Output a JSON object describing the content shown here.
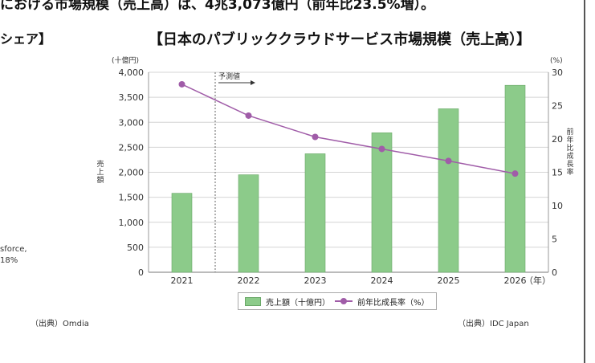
{
  "page": {
    "top_text": "における市場規模（売上高）は、4兆3,073億円（前年比23.5%増）。",
    "left_heading": "シェア】",
    "left_notes": [
      "sforce,",
      "18%"
    ],
    "left_source": "（出典）Omdia"
  },
  "chart_data": {
    "type": "bar",
    "title": "【日本のパブリッククラウドサービス市場規模（売上高）】",
    "categories": [
      "2021",
      "2022",
      "2023",
      "2024",
      "2025",
      "2026"
    ],
    "x_unit": "（年）",
    "y_left": {
      "unit": "(十億円)",
      "label": "売上額",
      "min": 0,
      "max": 4000,
      "ticks": [
        0,
        500,
        1000,
        1500,
        2000,
        2500,
        3000,
        3500,
        4000
      ],
      "tick_labels": [
        "0",
        "500",
        "1,000",
        "1,500",
        "2,000",
        "2,500",
        "3,000",
        "3,500",
        "4,000"
      ]
    },
    "y_right": {
      "unit": "(%)",
      "label": "前年比成長率",
      "min": 0,
      "max": 30,
      "ticks": [
        0,
        5,
        10,
        15,
        20,
        25,
        30
      ]
    },
    "series": [
      {
        "name": "売上額（十億円）",
        "kind": "bar",
        "axis": "left",
        "color": "#8ccb8a",
        "values": [
          1580,
          1950,
          2370,
          2790,
          3270,
          3740
        ]
      },
      {
        "name": "前年比成長率（%）",
        "kind": "line",
        "axis": "right",
        "color": "#a05ca8",
        "values": [
          28.2,
          23.5,
          20.3,
          18.5,
          16.7,
          14.8
        ]
      }
    ],
    "annotation": {
      "label": "予測値",
      "starts_after": "2021"
    },
    "grid": true,
    "legend_position": "bottom",
    "source": "（出典）IDC Japan"
  }
}
